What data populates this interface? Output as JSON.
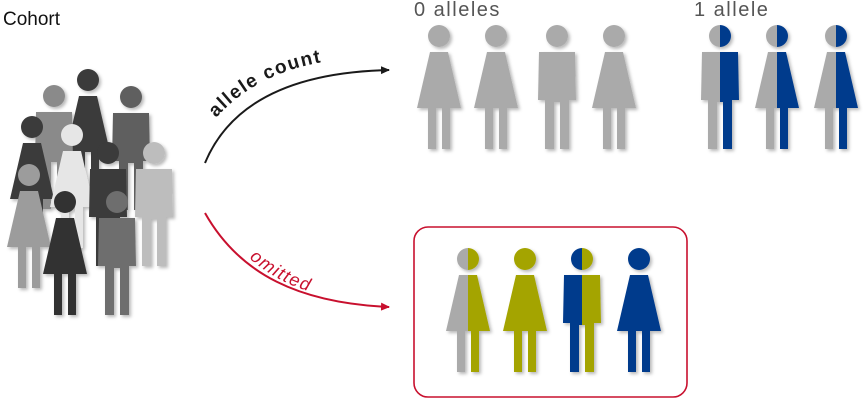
{
  "cohort": {
    "title": "Cohort"
  },
  "arrows": {
    "allele_count": "allele count",
    "omitted": "omitted"
  },
  "groups": {
    "zero_alleles": "0 alleles",
    "one_allele": "1 allele"
  },
  "colors": {
    "gray": "#aaaaaa",
    "blue": "#003a8c",
    "olive": "#a4a400",
    "crimson": "#c8102e",
    "dark_arrow": "#1a1a1a",
    "cohort_dark": "#3a3a3a",
    "cohort_mid": "#6b6b6b",
    "cohort_light": "#bdbdbd",
    "cohort_pale": "#e6e6e6"
  }
}
